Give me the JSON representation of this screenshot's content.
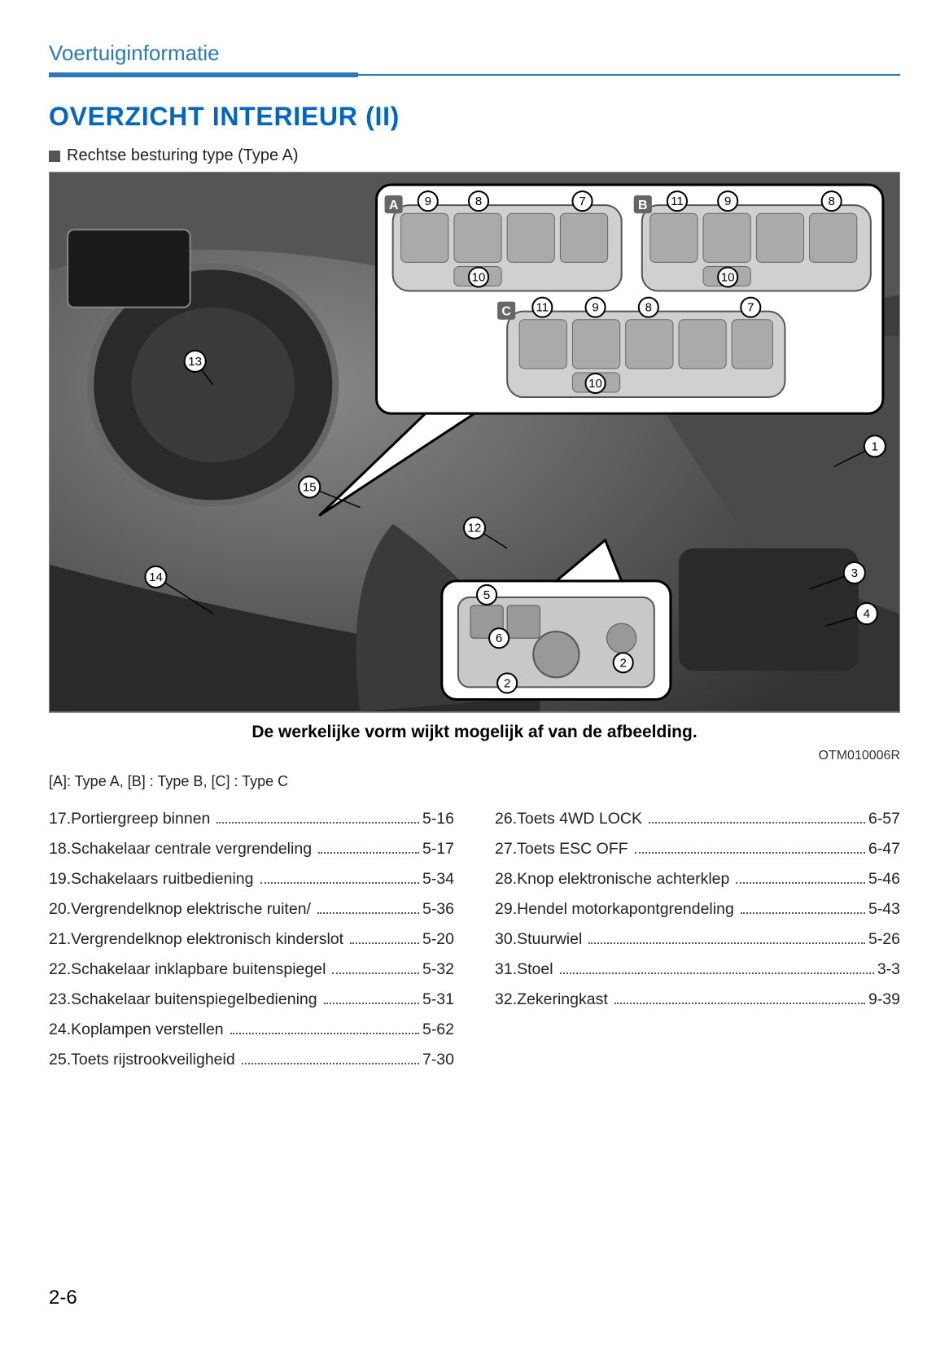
{
  "header": {
    "section_title": "Voertuiginformatie",
    "accent_color": "#2a7ab8"
  },
  "title": "OVERZICHT INTERIEUR (II)",
  "subtitle": "Rechtse besturing type (Type A)",
  "diagram": {
    "callouts_main": [
      "1",
      "2",
      "3",
      "4",
      "5",
      "6",
      "12",
      "13",
      "14",
      "15"
    ],
    "inset_a": {
      "tag": "A",
      "callouts": [
        "7",
        "8",
        "9",
        "10"
      ]
    },
    "inset_b": {
      "tag": "B",
      "callouts": [
        "8",
        "9",
        "10",
        "11"
      ]
    },
    "inset_c": {
      "tag": "C",
      "callouts": [
        "7",
        "8",
        "9",
        "10",
        "11"
      ]
    },
    "image_ref": "OTM010006R",
    "caption": "De werkelijke vorm wijkt mogelijk af van de afbeelding.",
    "colors": {
      "background": "#b5b5b5",
      "callout_fill": "#ffffff",
      "callout_stroke": "#000000",
      "inset_fill": "#e8e8e8",
      "tag_fill": "#666666"
    }
  },
  "type_note": "[A]: Type A, [B] : Type B, [C] : Type C",
  "list_left": [
    {
      "num": "17.",
      "label": "Portiergreep binnen",
      "page": "5-16"
    },
    {
      "num": "18.",
      "label": "Schakelaar centrale vergrendeling",
      "page": "5-17"
    },
    {
      "num": "19.",
      "label": "Schakelaars ruitbediening",
      "page": "5-34"
    },
    {
      "num": "20.",
      "label": "Vergrendelknop elektrische ruiten/",
      "page": "5-36"
    },
    {
      "num": "21.",
      "label": "Vergrendelknop elektronisch kinderslot",
      "page": "5-20"
    },
    {
      "num": "22.",
      "label": "Schakelaar inklapbare buitenspiegel",
      "page": "5-32"
    },
    {
      "num": "23.",
      "label": "Schakelaar buitenspiegelbediening",
      "page": "5-31"
    },
    {
      "num": "24.",
      "label": "Koplampen verstellen",
      "page": "5-62"
    },
    {
      "num": "25.",
      "label": "Toets rijstrookveiligheid",
      "page": "7-30"
    }
  ],
  "list_right": [
    {
      "num": "26.",
      "label": "Toets 4WD LOCK",
      "page": "6-57"
    },
    {
      "num": "27.",
      "label": "Toets ESC OFF",
      "page": "6-47"
    },
    {
      "num": "28.",
      "label": "Knop elektronische achterklep",
      "page": "5-46"
    },
    {
      "num": "29.",
      "label": "Hendel motorkapontgrendeling",
      "page": "5-43"
    },
    {
      "num": "30.",
      "label": "Stuurwiel",
      "page": "5-26"
    },
    {
      "num": "31.",
      "label": "Stoel",
      "page": "3-3"
    },
    {
      "num": "32.",
      "label": "Zekeringkast",
      "page": "9-39"
    }
  ],
  "page_number": "2-6"
}
